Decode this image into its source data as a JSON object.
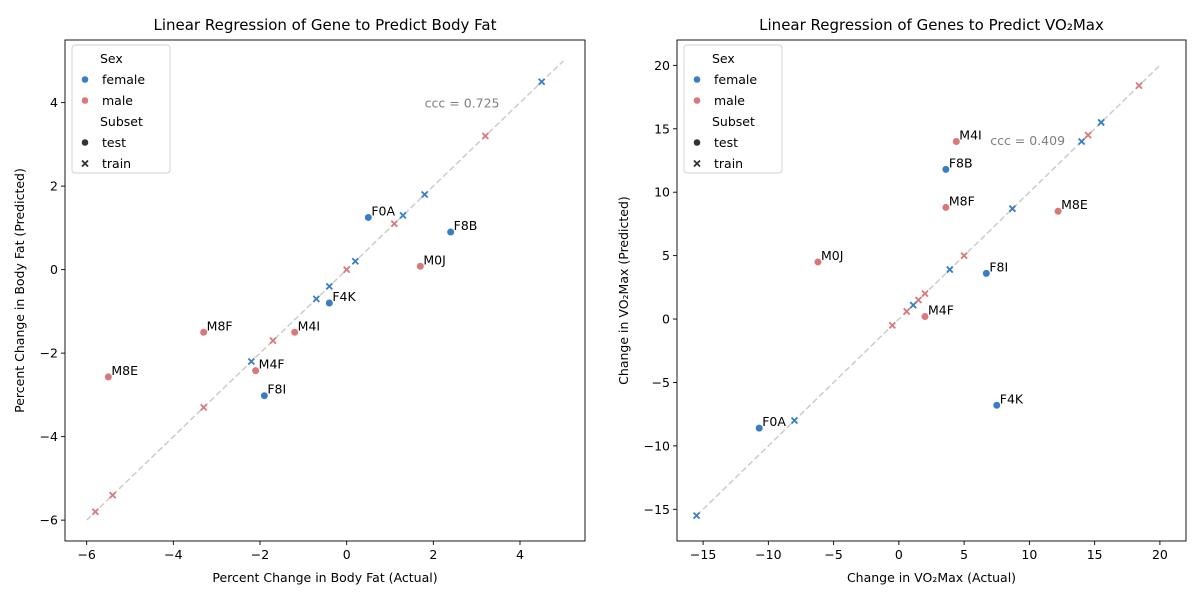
{
  "colors": {
    "female": "#3a7dc4",
    "male": "#d9777a",
    "diag": "#cccccc",
    "text_gray": "#7f7f7f"
  },
  "chart_data": [
    {
      "type": "scatter",
      "title": "Linear Regression of Gene to Predict Body Fat",
      "xlabel": "Percent Change in Body Fat (Actual)",
      "ylabel": "Percent Change in Body Fat (Predicted)",
      "xlim": [
        -6.5,
        5.5
      ],
      "ylim": [
        -6.5,
        5.5
      ],
      "xticks": [
        -6,
        -4,
        -2,
        0,
        2,
        4
      ],
      "yticks": [
        -6,
        -4,
        -2,
        0,
        2,
        4
      ],
      "xtick_labels": [
        "−6",
        "−4",
        "−2",
        "0",
        "2",
        "4"
      ],
      "ytick_labels": [
        "−6",
        "−4",
        "−2",
        "0",
        "2",
        "4"
      ],
      "diagonal": [
        -6,
        5
      ],
      "annotation": "ccc = 0.725",
      "annotation_xy": [
        1.8,
        4.0
      ],
      "legend": {
        "hue_title": "Sex",
        "hue": [
          "female",
          "male"
        ],
        "style_title": "Subset",
        "style": [
          "test",
          "train"
        ],
        "placement": "upper left"
      },
      "points": [
        {
          "x": 4.5,
          "y": 4.5,
          "sex": "female",
          "subset": "train"
        },
        {
          "x": 3.2,
          "y": 3.2,
          "sex": "male",
          "subset": "train"
        },
        {
          "x": 1.8,
          "y": 1.8,
          "sex": "female",
          "subset": "train"
        },
        {
          "x": 1.3,
          "y": 1.3,
          "sex": "female",
          "subset": "train"
        },
        {
          "x": 1.1,
          "y": 1.1,
          "sex": "male",
          "subset": "train"
        },
        {
          "x": 0.2,
          "y": 0.2,
          "sex": "female",
          "subset": "train"
        },
        {
          "x": 0.0,
          "y": 0.0,
          "sex": "male",
          "subset": "train"
        },
        {
          "x": -0.4,
          "y": -0.4,
          "sex": "female",
          "subset": "train"
        },
        {
          "x": -0.7,
          "y": -0.7,
          "sex": "female",
          "subset": "train"
        },
        {
          "x": -1.7,
          "y": -1.7,
          "sex": "male",
          "subset": "train"
        },
        {
          "x": -2.2,
          "y": -2.2,
          "sex": "female",
          "subset": "train"
        },
        {
          "x": -3.3,
          "y": -3.3,
          "sex": "male",
          "subset": "train"
        },
        {
          "x": -5.4,
          "y": -5.4,
          "sex": "male",
          "subset": "train"
        },
        {
          "x": -5.8,
          "y": -5.8,
          "sex": "male",
          "subset": "train"
        },
        {
          "x": 0.5,
          "y": 1.25,
          "sex": "female",
          "subset": "test",
          "label": "F0A"
        },
        {
          "x": 2.4,
          "y": 0.9,
          "sex": "female",
          "subset": "test",
          "label": "F8B"
        },
        {
          "x": 1.7,
          "y": 0.08,
          "sex": "male",
          "subset": "test",
          "label": "M0J"
        },
        {
          "x": -0.4,
          "y": -0.8,
          "sex": "female",
          "subset": "test",
          "label": "F4K"
        },
        {
          "x": -1.2,
          "y": -1.5,
          "sex": "male",
          "subset": "test",
          "label": "M4I"
        },
        {
          "x": -3.3,
          "y": -1.5,
          "sex": "male",
          "subset": "test",
          "label": "M8F"
        },
        {
          "x": -2.1,
          "y": -2.42,
          "sex": "male",
          "subset": "test",
          "label": "M4F"
        },
        {
          "x": -5.5,
          "y": -2.57,
          "sex": "male",
          "subset": "test",
          "label": "M8E"
        },
        {
          "x": -1.9,
          "y": -3.02,
          "sex": "female",
          "subset": "test",
          "label": "F8I"
        }
      ]
    },
    {
      "type": "scatter",
      "title": "Linear Regression of Genes to Predict VO₂Max",
      "xlabel": "Change in VO₂Max (Actual)",
      "ylabel": "Change in VO₂Max (Predicted)",
      "xlim": [
        -17,
        22
      ],
      "ylim": [
        -17.5,
        22
      ],
      "xticks": [
        -15,
        -10,
        -5,
        0,
        5,
        10,
        15,
        20
      ],
      "yticks": [
        -15,
        -10,
        -5,
        0,
        5,
        10,
        15,
        20
      ],
      "xtick_labels": [
        "−15",
        "−10",
        "−5",
        "0",
        "5",
        "10",
        "15",
        "20"
      ],
      "ytick_labels": [
        "−15",
        "−10",
        "−5",
        "0",
        "5",
        "10",
        "15",
        "20"
      ],
      "diagonal": [
        -15.5,
        20
      ],
      "annotation": "ccc = 0.409",
      "annotation_xy": [
        7.0,
        14.1
      ],
      "legend": {
        "hue_title": "Sex",
        "hue": [
          "female",
          "male"
        ],
        "style_title": "Subset",
        "style": [
          "test",
          "train"
        ],
        "placement": "upper left"
      },
      "points": [
        {
          "x": 18.4,
          "y": 18.4,
          "sex": "male",
          "subset": "train"
        },
        {
          "x": 15.5,
          "y": 15.5,
          "sex": "female",
          "subset": "train"
        },
        {
          "x": 14.5,
          "y": 14.5,
          "sex": "male",
          "subset": "train"
        },
        {
          "x": 14.0,
          "y": 14.0,
          "sex": "female",
          "subset": "train"
        },
        {
          "x": 8.7,
          "y": 8.7,
          "sex": "female",
          "subset": "train"
        },
        {
          "x": 5.0,
          "y": 5.0,
          "sex": "male",
          "subset": "train"
        },
        {
          "x": 3.9,
          "y": 3.9,
          "sex": "female",
          "subset": "train"
        },
        {
          "x": 2.0,
          "y": 2.0,
          "sex": "male",
          "subset": "train"
        },
        {
          "x": 1.5,
          "y": 1.5,
          "sex": "male",
          "subset": "train"
        },
        {
          "x": 1.1,
          "y": 1.1,
          "sex": "female",
          "subset": "train"
        },
        {
          "x": 0.6,
          "y": 0.6,
          "sex": "male",
          "subset": "train"
        },
        {
          "x": -0.5,
          "y": -0.5,
          "sex": "male",
          "subset": "train"
        },
        {
          "x": -8.0,
          "y": -8.0,
          "sex": "female",
          "subset": "train"
        },
        {
          "x": -15.5,
          "y": -15.5,
          "sex": "female",
          "subset": "train"
        },
        {
          "x": 4.4,
          "y": 14.0,
          "sex": "male",
          "subset": "test",
          "label": "M4I"
        },
        {
          "x": 3.6,
          "y": 11.8,
          "sex": "female",
          "subset": "test",
          "label": "F8B"
        },
        {
          "x": 3.6,
          "y": 8.8,
          "sex": "male",
          "subset": "test",
          "label": "M8F"
        },
        {
          "x": 12.2,
          "y": 8.5,
          "sex": "male",
          "subset": "test",
          "label": "M8E"
        },
        {
          "x": -6.2,
          "y": 4.5,
          "sex": "male",
          "subset": "test",
          "label": "M0J"
        },
        {
          "x": 6.7,
          "y": 3.6,
          "sex": "female",
          "subset": "test",
          "label": "F8I"
        },
        {
          "x": 2.0,
          "y": 0.2,
          "sex": "male",
          "subset": "test",
          "label": "M4F"
        },
        {
          "x": 7.5,
          "y": -6.8,
          "sex": "female",
          "subset": "test",
          "label": "F4K"
        },
        {
          "x": -10.7,
          "y": -8.6,
          "sex": "female",
          "subset": "test",
          "label": "F0A"
        }
      ]
    }
  ]
}
